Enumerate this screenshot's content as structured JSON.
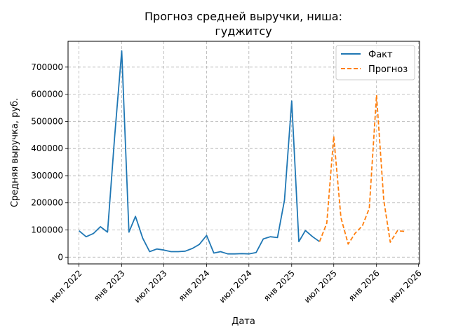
{
  "chart_data": {
    "type": "line",
    "title_lines": [
      "Прогноз средней выручки, ниша:",
      "гуджитсу"
    ],
    "xlabel": "Дата",
    "ylabel": "Средняя выручка, руб.",
    "xlim": [
      "2022-05-15",
      "2026-07-05"
    ],
    "ylim": [
      -25000,
      795000
    ],
    "x_ticks": [
      {
        "date": "2022-07-01",
        "label": "июл 2022"
      },
      {
        "date": "2023-01-01",
        "label": "янв 2023"
      },
      {
        "date": "2023-07-01",
        "label": "июл 2023"
      },
      {
        "date": "2024-01-01",
        "label": "янв 2024"
      },
      {
        "date": "2024-07-01",
        "label": "июл 2024"
      },
      {
        "date": "2025-01-01",
        "label": "янв 2025"
      },
      {
        "date": "2025-07-01",
        "label": "июл 2025"
      },
      {
        "date": "2026-01-01",
        "label": "янв 2026"
      },
      {
        "date": "2026-07-01",
        "label": "июл 2026"
      }
    ],
    "y_ticks": [
      {
        "value": 0,
        "label": "0"
      },
      {
        "value": 100000,
        "label": "100000"
      },
      {
        "value": 200000,
        "label": "200000"
      },
      {
        "value": 300000,
        "label": "300000"
      },
      {
        "value": 400000,
        "label": "400000"
      },
      {
        "value": 500000,
        "label": "500000"
      },
      {
        "value": 600000,
        "label": "600000"
      },
      {
        "value": 700000,
        "label": "700000"
      }
    ],
    "grid": true,
    "legend_position": "top-right",
    "series": [
      {
        "name": "Факт",
        "color": "#1f77b4",
        "style": "solid",
        "points": [
          {
            "x": "2022-07-01",
            "y": 97000
          },
          {
            "x": "2022-08-01",
            "y": 75000
          },
          {
            "x": "2022-09-01",
            "y": 87000
          },
          {
            "x": "2022-10-01",
            "y": 112000
          },
          {
            "x": "2022-11-01",
            "y": 92000
          },
          {
            "x": "2022-12-01",
            "y": 440000
          },
          {
            "x": "2023-01-01",
            "y": 760000
          },
          {
            "x": "2023-02-01",
            "y": 92000
          },
          {
            "x": "2023-03-01",
            "y": 150000
          },
          {
            "x": "2023-04-01",
            "y": 70000
          },
          {
            "x": "2023-05-01",
            "y": 20000
          },
          {
            "x": "2023-06-01",
            "y": 30000
          },
          {
            "x": "2023-07-01",
            "y": 26000
          },
          {
            "x": "2023-08-01",
            "y": 20000
          },
          {
            "x": "2023-09-01",
            "y": 20000
          },
          {
            "x": "2023-10-01",
            "y": 22000
          },
          {
            "x": "2023-11-01",
            "y": 32000
          },
          {
            "x": "2023-12-01",
            "y": 47000
          },
          {
            "x": "2024-01-01",
            "y": 80000
          },
          {
            "x": "2024-02-01",
            "y": 15000
          },
          {
            "x": "2024-03-01",
            "y": 20000
          },
          {
            "x": "2024-04-01",
            "y": 12000
          },
          {
            "x": "2024-05-01",
            "y": 12000
          },
          {
            "x": "2024-06-01",
            "y": 13000
          },
          {
            "x": "2024-07-01",
            "y": 12000
          },
          {
            "x": "2024-08-01",
            "y": 17000
          },
          {
            "x": "2024-09-01",
            "y": 67000
          },
          {
            "x": "2024-10-01",
            "y": 75000
          },
          {
            "x": "2024-11-01",
            "y": 72000
          },
          {
            "x": "2024-12-01",
            "y": 210000
          },
          {
            "x": "2025-01-01",
            "y": 575000
          },
          {
            "x": "2025-02-01",
            "y": 57000
          },
          {
            "x": "2025-03-01",
            "y": 98000
          },
          {
            "x": "2025-04-01",
            "y": 75000
          },
          {
            "x": "2025-05-01",
            "y": 57000
          }
        ]
      },
      {
        "name": "Прогноз",
        "color": "#ff7f0e",
        "style": "dashed",
        "points": [
          {
            "x": "2025-05-01",
            "y": 57000
          },
          {
            "x": "2025-06-01",
            "y": 125000
          },
          {
            "x": "2025-07-01",
            "y": 445000
          },
          {
            "x": "2025-08-01",
            "y": 145000
          },
          {
            "x": "2025-09-01",
            "y": 48000
          },
          {
            "x": "2025-10-01",
            "y": 88000
          },
          {
            "x": "2025-11-01",
            "y": 115000
          },
          {
            "x": "2025-12-01",
            "y": 180000
          },
          {
            "x": "2026-01-01",
            "y": 597000
          },
          {
            "x": "2026-02-01",
            "y": 210000
          },
          {
            "x": "2026-03-01",
            "y": 55000
          },
          {
            "x": "2026-04-01",
            "y": 97000
          },
          {
            "x": "2026-05-01",
            "y": 95000
          }
        ]
      }
    ]
  }
}
